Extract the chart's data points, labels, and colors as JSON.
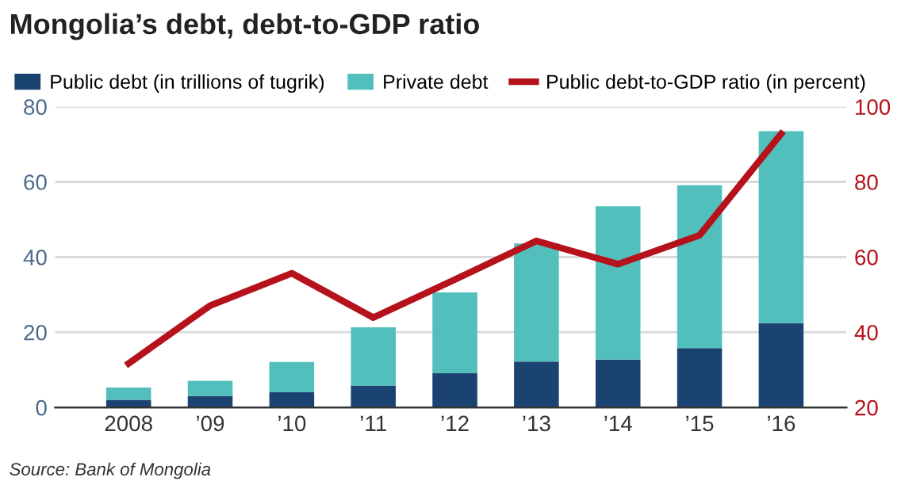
{
  "chart_data": {
    "type": "bar",
    "title": "Mongolia’s debt, debt-to-GDP ratio",
    "categories": [
      "2008",
      "’09",
      "’10",
      "’11",
      "’12",
      "’13",
      "’14",
      "’15",
      "’16"
    ],
    "stacked": true,
    "series": [
      {
        "name": "Public debt (in trillions of tugrik)",
        "color": "#1b4371",
        "values": [
          2.0,
          3.0,
          4.0,
          5.8,
          9.1,
          12.2,
          12.7,
          15.8,
          22.4
        ]
      },
      {
        "name": "Private debt",
        "color": "#52bfbc",
        "values": [
          3.3,
          4.1,
          8.1,
          15.5,
          21.5,
          31.4,
          40.8,
          43.3,
          51.1
        ]
      },
      {
        "name": "Public debt-to-GDP ratio (in percent)",
        "type": "line",
        "axis": "y2",
        "color": "#b5121b",
        "values": [
          31.7,
          47.1,
          55.7,
          43.9,
          54,
          64.3,
          58.1,
          65.8,
          92.8
        ]
      }
    ],
    "ylim": [
      0,
      80
    ],
    "yticks": [
      0,
      20,
      40,
      60,
      80
    ],
    "y2lim": [
      20,
      100
    ],
    "y2ticks": [
      20,
      40,
      60,
      80,
      100
    ],
    "grid": "y",
    "legend": "top",
    "annotations": [
      "Source: Bank of Mongolia"
    ]
  }
}
